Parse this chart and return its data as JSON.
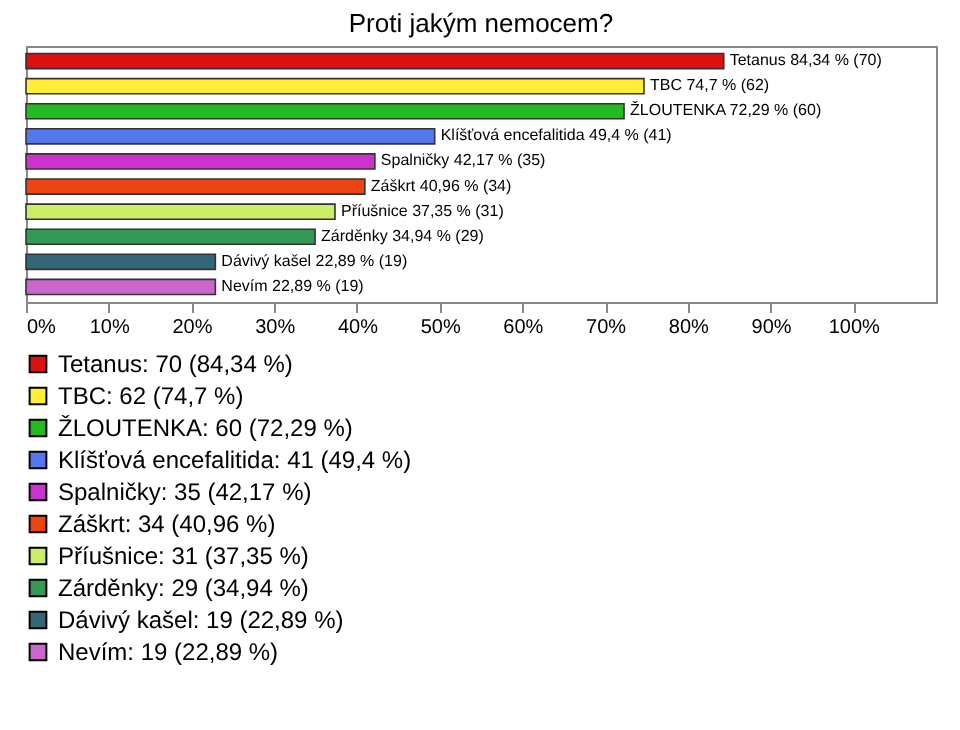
{
  "chart_data": {
    "type": "bar",
    "orientation": "horizontal",
    "stacked": true,
    "title": "Proti jakým nemocem?",
    "categories": [
      null,
      null,
      null,
      null,
      null,
      null,
      null,
      null,
      null,
      null
    ],
    "series": [
      {
        "name": "Tetanus: 70 (84,34 %)",
        "color": "#dd1111",
        "values": [
          84.34,
          null,
          null,
          null,
          null,
          null,
          null,
          null,
          null,
          null
        ],
        "value_labels": [
          "Tetanus 84,34 % (70)",
          null,
          null,
          null,
          null,
          null,
          null,
          null,
          null,
          null
        ]
      },
      {
        "name": "TBC: 62 (74,7 %)",
        "color": "#ffee33",
        "values": [
          null,
          74.7,
          null,
          null,
          null,
          null,
          null,
          null,
          null,
          null
        ],
        "value_labels": [
          null,
          "TBC 74,7 % (62)",
          null,
          null,
          null,
          null,
          null,
          null,
          null,
          null
        ]
      },
      {
        "name": "ŽLOUTENKA: 60 (72,29 %)",
        "color": "#22bb22",
        "values": [
          null,
          null,
          72.29,
          null,
          null,
          null,
          null,
          null,
          null,
          null
        ],
        "value_labels": [
          null,
          null,
          "ŽLOUTENKA 72,29 % (60)",
          null,
          null,
          null,
          null,
          null,
          null,
          null
        ]
      },
      {
        "name": "Klíšťová encefalitida: 41 (49,4 %)",
        "color": "#5577ee",
        "values": [
          null,
          null,
          null,
          49.4,
          null,
          null,
          null,
          null,
          null,
          null
        ],
        "value_labels": [
          null,
          null,
          null,
          "Klíšťová encefalitida 49,4 % (41)",
          null,
          null,
          null,
          null,
          null,
          null
        ]
      },
      {
        "name": "Spalničky: 35 (42,17 %)",
        "color": "#cc33cc",
        "values": [
          null,
          null,
          null,
          null,
          42.17,
          null,
          null,
          null,
          null,
          null
        ],
        "value_labels": [
          null,
          null,
          null,
          null,
          "Spalničky 42,17 % (35)",
          null,
          null,
          null,
          null,
          null
        ]
      },
      {
        "name": "Záškrt: 34 (40,96 %)",
        "color": "#ee4411",
        "values": [
          null,
          null,
          null,
          null,
          null,
          40.96,
          null,
          null,
          null,
          null
        ],
        "value_labels": [
          null,
          null,
          null,
          null,
          null,
          "Záškrt 40,96 % (34)",
          null,
          null,
          null,
          null
        ]
      },
      {
        "name": "Příušnice: 31 (37,35 %)",
        "color": "#ccee66",
        "values": [
          null,
          null,
          null,
          null,
          null,
          null,
          37.35,
          null,
          null,
          null
        ],
        "value_labels": [
          null,
          null,
          null,
          null,
          null,
          null,
          "Příušnice 37,35 % (31)",
          null,
          null,
          null
        ]
      },
      {
        "name": "Zárděnky: 29 (34,94 %)",
        "color": "#339955",
        "values": [
          null,
          null,
          null,
          null,
          null,
          null,
          null,
          34.94,
          null,
          null
        ],
        "value_labels": [
          null,
          null,
          null,
          null,
          null,
          null,
          null,
          "Zárděnky 34,94 % (29)",
          null,
          null
        ]
      },
      {
        "name": "Dávivý kašel: 19 (22,89 %)",
        "color": "#336677",
        "values": [
          null,
          null,
          null,
          null,
          null,
          null,
          null,
          null,
          22.89,
          null
        ],
        "value_labels": [
          null,
          null,
          null,
          null,
          null,
          null,
          null,
          null,
          "Dávivý kašel 22,89 % (19)",
          null
        ]
      },
      {
        "name": "Nevím: 19 (22,89 %)",
        "color": "#cc66cc",
        "values": [
          null,
          null,
          null,
          null,
          null,
          null,
          null,
          null,
          null,
          22.89
        ],
        "value_labels": [
          null,
          null,
          null,
          null,
          null,
          null,
          null,
          null,
          null,
          "Nevím 22,89 % (19)"
        ]
      }
    ],
    "xlim": [
      0,
      110
    ],
    "xticks": [
      {
        "value": 0,
        "label": "0%"
      },
      {
        "value": 10,
        "label": "10%"
      },
      {
        "value": 20,
        "label": "20%"
      },
      {
        "value": 30,
        "label": "30%"
      },
      {
        "value": 40,
        "label": "40%"
      },
      {
        "value": 50,
        "label": "50%"
      },
      {
        "value": 60,
        "label": "60%"
      },
      {
        "value": 70,
        "label": "70%"
      },
      {
        "value": 80,
        "label": "80%"
      },
      {
        "value": 90,
        "label": "90%"
      },
      {
        "value": 100,
        "label": "100%"
      }
    ],
    "legend": "bottom",
    "tick_labels": "x"
  }
}
